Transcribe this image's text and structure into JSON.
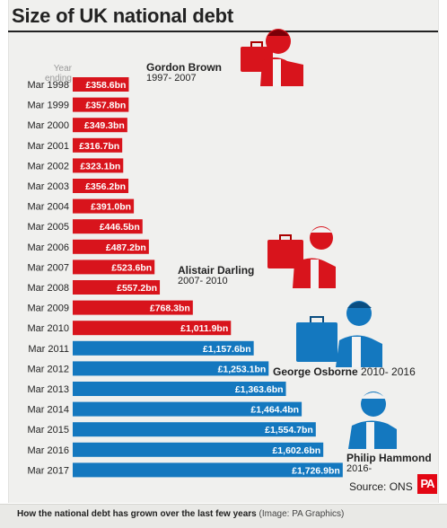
{
  "title": "Size of UK national debt",
  "year_ending_label": "Year ending",
  "source": "Source: ONS",
  "logo_text": "PA",
  "caption": {
    "text": "How the national debt has grown over the last few years",
    "credit": "(Image: PA Graphics)"
  },
  "chancellors": [
    {
      "name": "Gordon Brown",
      "years": "1997- 2007",
      "color": "#d8141c"
    },
    {
      "name": "Alistair Darling",
      "years": "2007- 2010",
      "color": "#d8141c"
    },
    {
      "name": "George Osborne",
      "years": "2010- 2016",
      "color": "#1478bf"
    },
    {
      "name": "Philip Hammond",
      "years": "2016-",
      "color": "#1478bf"
    }
  ],
  "colors": {
    "labour": "#d8141c",
    "conservative": "#1478bf"
  },
  "chart_data": {
    "type": "bar",
    "orientation": "horizontal",
    "title": "Size of UK national debt",
    "categories": [
      "Mar 1998",
      "Mar 1999",
      "Mar 2000",
      "Mar 2001",
      "Mar 2002",
      "Mar 2003",
      "Mar 2004",
      "Mar 2005",
      "Mar 2006",
      "Mar 2007",
      "Mar 2008",
      "Mar 2009",
      "Mar 2010",
      "Mar 2011",
      "Mar 2012",
      "Mar 2013",
      "Mar 2014",
      "Mar 2015",
      "Mar 2016",
      "Mar 2017"
    ],
    "values": [
      358.6,
      357.8,
      349.3,
      316.7,
      323.1,
      356.2,
      391.0,
      446.5,
      487.2,
      523.6,
      557.2,
      768.3,
      1011.9,
      1157.6,
      1253.1,
      1363.6,
      1464.4,
      1554.7,
      1602.6,
      1726.9
    ],
    "labels": [
      "£358.6bn",
      "£357.8bn",
      "£349.3bn",
      "£316.7bn",
      "£323.1bn",
      "£356.2bn",
      "£391.0bn",
      "£446.5bn",
      "£487.2bn",
      "£523.6bn",
      "£557.2bn",
      "£768.3bn",
      "£1,011.9bn",
      "£1,157.6bn",
      "£1,253.1bn",
      "£1,363.6bn",
      "£1,464.4bn",
      "£1,554.7bn",
      "£1,602.6bn",
      "£1,726.9bn"
    ],
    "bar_colors": [
      "#d8141c",
      "#d8141c",
      "#d8141c",
      "#d8141c",
      "#d8141c",
      "#d8141c",
      "#d8141c",
      "#d8141c",
      "#d8141c",
      "#d8141c",
      "#d8141c",
      "#d8141c",
      "#d8141c",
      "#1478bf",
      "#1478bf",
      "#1478bf",
      "#1478bf",
      "#1478bf",
      "#1478bf",
      "#1478bf"
    ],
    "unit": "£bn",
    "xlim": [
      0,
      1800
    ],
    "grid": false,
    "legend": "none"
  }
}
